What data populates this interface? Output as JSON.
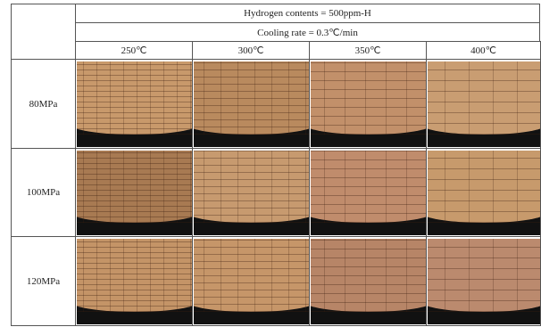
{
  "header": {
    "title": "Hydrogen contents = 500ppm-H",
    "subtitle": "Cooling rate = 0.3℃/min"
  },
  "columns": [
    "250℃",
    "300℃",
    "350℃",
    "400℃"
  ],
  "rows": [
    "80MPa",
    "100MPa",
    "120MPa"
  ]
}
